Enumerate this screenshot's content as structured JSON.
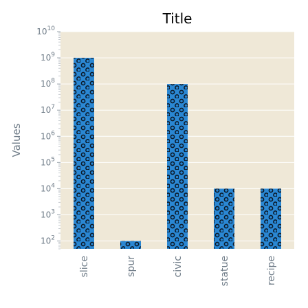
{
  "chart_data": {
    "type": "bar",
    "title": "Title",
    "xlabel": "",
    "ylabel": "Values",
    "yscale": "log",
    "ylim": [
      50,
      10000000000
    ],
    "categories": [
      "slice",
      "spur",
      "civic",
      "statue",
      "recipe"
    ],
    "values": [
      1000000000,
      100,
      100000000,
      10000,
      10000
    ],
    "ytick_values": [
      100,
      1000,
      10000,
      100000,
      1000000,
      10000000,
      100000000,
      1000000000,
      10000000000
    ],
    "ytick_exponents": [
      "2",
      "3",
      "4",
      "5",
      "6",
      "7",
      "8",
      "9",
      "10"
    ],
    "ytick_base": "10",
    "grid": true,
    "colors": {
      "bar": "#2a87d3",
      "bar_pattern": "#0b1a2a",
      "plot_background": "#efe8d7",
      "grid": "#ffffff",
      "text": "#6e7b87",
      "title": "#000000"
    }
  }
}
